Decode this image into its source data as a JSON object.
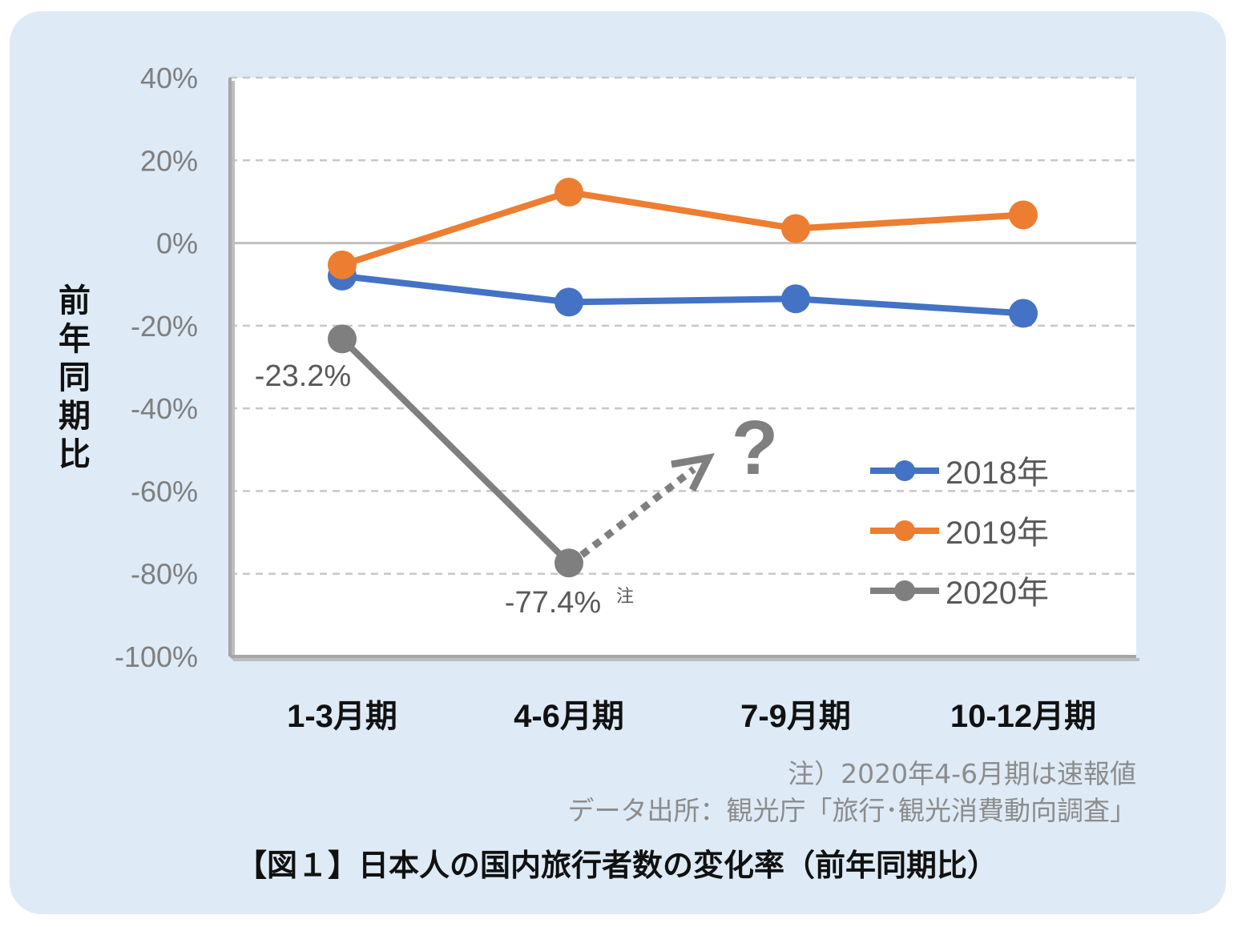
{
  "chart_data": {
    "type": "line",
    "categories": [
      "1-3月期",
      "4-6月期",
      "7-9月期",
      "10-12月期"
    ],
    "series": [
      {
        "name": "2018年",
        "color": "#4472c4",
        "values": [
          -8.0,
          -14.3,
          -13.5,
          -17.0
        ]
      },
      {
        "name": "2019年",
        "color": "#ed7d31",
        "values": [
          -5.3,
          12.3,
          3.5,
          6.8
        ]
      },
      {
        "name": "2020年",
        "color": "#7f7f7f",
        "values": [
          -23.2,
          -77.4,
          null,
          null
        ]
      }
    ],
    "ylabel": "前年同期比",
    "ylim": [
      -100,
      40
    ],
    "yticks": [
      40,
      20,
      0,
      -20,
      -40,
      -60,
      -80,
      -100
    ],
    "ytick_labels": [
      "40%",
      "20%",
      "0%",
      "-20%",
      "-40%",
      "-60%",
      "-80%",
      "-100%"
    ],
    "grid": true,
    "legend_position": "right",
    "annotations": {
      "label_q1_2020": "-23.2%",
      "label_q2_2020": "-77.4%",
      "label_q2_2020_note": "注",
      "question_mark": "?"
    }
  },
  "notes": {
    "line1": "注）2020年4-6月期は速報値",
    "line2": "データ出所：観光庁「旅行･観光消費動向調査」"
  },
  "caption": "【図１】日本人の国内旅行者数の変化率（前年同期比）"
}
